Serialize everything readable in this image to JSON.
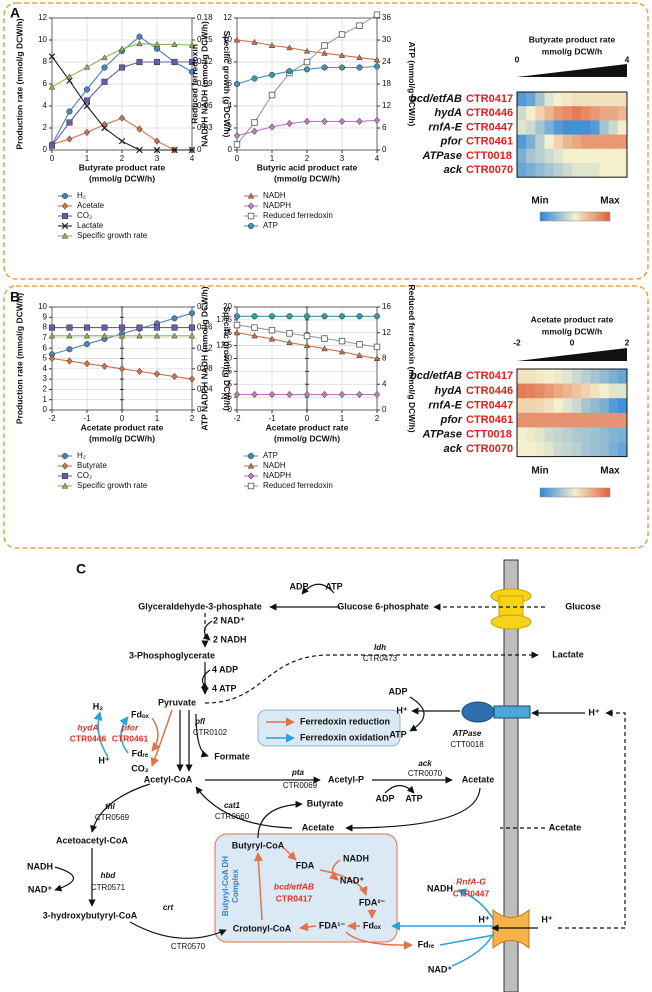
{
  "panel_labels": [
    "A",
    "B",
    "C"
  ],
  "chart_data": [
    {
      "type": "line",
      "x": [
        0,
        0.5,
        1,
        1.5,
        2,
        2.5,
        3,
        3.5,
        4
      ],
      "xlim": [
        0,
        4
      ],
      "xticks": [
        0,
        1,
        2,
        3,
        4
      ],
      "ylim": [
        0,
        12
      ],
      "yticks": [
        0,
        2,
        4,
        6,
        8,
        10,
        12
      ],
      "y2lim": [
        0,
        0.18
      ],
      "y2ticks": [
        0,
        0.03,
        0.06,
        0.09,
        0.12,
        0.15,
        0.18
      ],
      "x_label": [
        "Butyrate product rate",
        "(mmol/g DCW/h)"
      ],
      "y_label": [
        "Production rate (mmol/g DCW/h)"
      ],
      "y2_label": [
        "Specific growth (g DCW/h)"
      ],
      "grid": true,
      "series": [
        {
          "name": "H₂",
          "color": "#4f81bd",
          "marker": "circle",
          "values": [
            0.5,
            3.5,
            5.5,
            7.5,
            9,
            10.3,
            9.2,
            8,
            7.1
          ]
        },
        {
          "name": "Acetate",
          "color": "#c8734a",
          "marker": "diamond",
          "values": [
            0.5,
            1,
            1.6,
            2.3,
            2.9,
            1.9,
            0.8,
            0,
            0
          ]
        },
        {
          "name": "CO₂",
          "color": "#6a5aa8",
          "marker": "square",
          "values": [
            0.4,
            2.5,
            4.5,
            6.2,
            7.5,
            8,
            8,
            8,
            8
          ]
        },
        {
          "name": "Lactate",
          "color": "#222222",
          "marker": "x",
          "values": [
            8.5,
            6.3,
            4,
            2,
            0.8,
            0,
            0,
            0,
            0
          ]
        },
        {
          "name": "Specific growth rate",
          "color": "#8fb35a",
          "marker": "triangle",
          "axis": "y2",
          "values": [
            0.086,
            0.1,
            0.113,
            0.126,
            0.138,
            0.145,
            0.144,
            0.144,
            0.143
          ]
        }
      ]
    },
    {
      "type": "line",
      "x": [
        0,
        0.5,
        1,
        1.5,
        2,
        2.5,
        3,
        3.5,
        4
      ],
      "xlim": [
        0,
        4
      ],
      "xticks": [
        0,
        1,
        2,
        3,
        4
      ],
      "ylim": [
        0,
        12
      ],
      "yticks": [
        0,
        2,
        4,
        6,
        8,
        10,
        12
      ],
      "y2lim": [
        0,
        36
      ],
      "y2ticks": [
        0,
        6,
        12,
        18,
        24,
        30,
        36
      ],
      "x_label": [
        "Butyric acid product rate",
        "(mmol/g DCW/h)"
      ],
      "y_label": [
        "Reduced ferredoxin",
        "NADPH NADH (mmol/g DCW/h)"
      ],
      "y2_label": [
        "ATP (mmol/g DCW/h)"
      ],
      "grid": true,
      "series": [
        {
          "name": "NADH",
          "color": "#c8734a",
          "marker": "triangle",
          "values": [
            10,
            9.8,
            9.5,
            9.3,
            9,
            8.8,
            8.6,
            8.4,
            8.2
          ]
        },
        {
          "name": "NADPH",
          "color": "#c07ac0",
          "marker": "diamond",
          "values": [
            1.3,
            1.7,
            2.1,
            2.4,
            2.6,
            2.6,
            2.6,
            2.6,
            2.7
          ]
        },
        {
          "name": "Reduced ferredoxin",
          "color": "#9a9a9a",
          "marker": "square-open",
          "values": [
            0.5,
            2.5,
            5,
            7,
            8,
            9.5,
            10.5,
            11.3,
            12.3
          ]
        },
        {
          "name": "ATP",
          "color": "#3f93b0",
          "marker": "circle",
          "axis": "y2",
          "values": [
            18,
            19.5,
            20.5,
            21.5,
            22,
            22.5,
            22.5,
            22.5,
            22.8
          ]
        }
      ]
    },
    {
      "type": "heatmap",
      "title": "Butyrate product rate",
      "subtitle": "mmol/g DCW/h",
      "xlim": [
        0,
        4
      ],
      "xticks": [
        0,
        4
      ],
      "rows": [
        {
          "gene": "bcd/etfAB",
          "locus": "CTR0417"
        },
        {
          "gene": "hydA",
          "locus": "CTR0446"
        },
        {
          "gene": "rnfA-E",
          "locus": "CTR0447"
        },
        {
          "gene": "pfor",
          "locus": "CTR0461"
        },
        {
          "gene": "ATPase",
          "locus": "CTT0018"
        },
        {
          "gene": "ack",
          "locus": "CTR0070"
        }
      ],
      "values": [
        [
          0.1,
          0.15,
          0.3,
          0.45,
          0.5,
          0.52,
          0.55,
          0.55,
          0.55,
          0.55,
          0.55,
          0.55
        ],
        [
          0.4,
          0.5,
          0.6,
          0.7,
          0.8,
          0.85,
          0.9,
          0.85,
          0.8,
          0.75,
          0.75,
          0.7
        ],
        [
          0.45,
          0.4,
          0.3,
          0.2,
          0.1,
          0.05,
          0.05,
          0.05,
          0.1,
          0.3,
          0.4,
          0.5
        ],
        [
          0.1,
          0.2,
          0.35,
          0.5,
          0.6,
          0.7,
          0.75,
          0.8,
          0.8,
          0.8,
          0.8,
          0.8
        ],
        [
          0.2,
          0.3,
          0.35,
          0.4,
          0.45,
          0.5,
          0.5,
          0.5,
          0.5,
          0.5,
          0.5,
          0.5
        ],
        [
          0.15,
          0.2,
          0.25,
          0.3,
          0.35,
          0.4,
          0.45,
          0.45,
          0.45,
          0.5,
          0.5,
          0.5
        ]
      ],
      "colorscale": [
        "#2b86d9",
        "#f4efcc",
        "#e0603a"
      ],
      "colorbar_labels": [
        "Min",
        "Max"
      ]
    },
    {
      "type": "line",
      "x": [
        -2,
        -1.5,
        -1,
        -0.5,
        0,
        0.5,
        1,
        1.5,
        2
      ],
      "xlim": [
        -2,
        2
      ],
      "xticks": [
        -2,
        -1,
        0,
        1,
        2
      ],
      "ylim": [
        0,
        10
      ],
      "yticks": [
        0,
        1,
        2,
        3,
        4,
        5,
        6,
        7,
        8,
        9,
        10
      ],
      "y2lim": [
        0,
        0.2
      ],
      "y2ticks": [
        0,
        0.04,
        0.08,
        0.12,
        0.16,
        0.2
      ],
      "x_label": [
        "Acetate product rate",
        "(mmol/g DCW/h)"
      ],
      "y_label": [
        "Production rate (mmol/g DCW/h)"
      ],
      "y2_label": [
        "Specific growth(g DCW/h)"
      ],
      "grid": true,
      "series": [
        {
          "name": "H₂",
          "color": "#4f81bd",
          "marker": "circle",
          "values": [
            5.4,
            5.9,
            6.4,
            6.9,
            7.4,
            7.9,
            8.4,
            8.9,
            9.4
          ]
        },
        {
          "name": "Butyrate",
          "color": "#c8734a",
          "marker": "diamond",
          "values": [
            5,
            4.75,
            4.5,
            4.25,
            4,
            3.75,
            3.5,
            3.25,
            3
          ]
        },
        {
          "name": "CO₂",
          "color": "#6a5aa8",
          "marker": "square",
          "values": [
            8,
            8,
            8,
            8,
            8,
            8,
            8,
            8,
            8
          ]
        },
        {
          "name": "Specific growth rate",
          "color": "#8fb35a",
          "marker": "triangle",
          "axis": "y2",
          "values": [
            0.144,
            0.144,
            0.144,
            0.144,
            0.144,
            0.144,
            0.144,
            0.144,
            0.144
          ]
        }
      ]
    },
    {
      "type": "line",
      "x": [
        -2,
        -1.5,
        -1,
        -0.5,
        0,
        0.5,
        1,
        1.5,
        2
      ],
      "xlim": [
        -2,
        2
      ],
      "xticks": [
        -2,
        -1,
        0,
        1,
        2
      ],
      "ylim": [
        0,
        20
      ],
      "yticks": [
        0,
        2.5,
        5,
        7.5,
        10,
        12.5,
        15,
        17.5,
        20
      ],
      "y2lim": [
        0,
        16
      ],
      "y2ticks": [
        0,
        4,
        8,
        12,
        16
      ],
      "x_label": [
        "Acetate product rate",
        "(mmol/g DCW/h)"
      ],
      "y_label": [
        "ATP NADPH NADH (mmol/g DCW/h)"
      ],
      "y2_label": [
        "Reduced ferredoxin (mmol/g DCW/h)"
      ],
      "grid": true,
      "series": [
        {
          "name": "ATP",
          "color": "#3f93b0",
          "marker": "circle",
          "values": [
            18.2,
            18.2,
            18.2,
            18.2,
            18.2,
            18.2,
            18.2,
            18.2,
            18.2
          ]
        },
        {
          "name": "NADH",
          "color": "#c8734a",
          "marker": "triangle",
          "values": [
            15,
            14.4,
            13.8,
            13.1,
            12.5,
            11.9,
            11.3,
            10.6,
            10
          ]
        },
        {
          "name": "NADPH",
          "color": "#c07ac0",
          "marker": "diamond",
          "values": [
            3,
            3,
            3,
            3,
            3,
            3,
            3,
            3,
            3
          ]
        },
        {
          "name": "Reduced ferredoxin",
          "color": "#9a9a9a",
          "marker": "square-open",
          "axis": "y2",
          "values": [
            13.2,
            12.8,
            12.4,
            11.9,
            11.5,
            11.1,
            10.7,
            10.2,
            9.8
          ]
        }
      ]
    },
    {
      "type": "heatmap",
      "title": "Acetate product rate",
      "subtitle": "mmol/g DCW/h",
      "xlim": [
        -2,
        2
      ],
      "xticks": [
        -2,
        0,
        2
      ],
      "rows": [
        {
          "gene": "bcd/etfAB",
          "locus": "CTR0417"
        },
        {
          "gene": "hydA",
          "locus": "CTR0446"
        },
        {
          "gene": "rnfA-E",
          "locus": "CTR0447"
        },
        {
          "gene": "pfor",
          "locus": "CTR0461"
        },
        {
          "gene": "ATPase",
          "locus": "CTT0018"
        },
        {
          "gene": "ack",
          "locus": "CTR0070"
        }
      ],
      "values": [
        [
          0.55,
          0.55,
          0.52,
          0.5,
          0.48,
          0.45,
          0.4,
          0.35,
          0.3,
          0.25,
          0.2,
          0.15
        ],
        [
          0.9,
          0.88,
          0.85,
          0.8,
          0.75,
          0.7,
          0.65,
          0.6,
          0.55,
          0.5,
          0.45,
          0.45
        ],
        [
          0.6,
          0.6,
          0.58,
          0.55,
          0.5,
          0.45,
          0.4,
          0.3,
          0.25,
          0.2,
          0.1,
          0.05
        ],
        [
          0.82,
          0.82,
          0.82,
          0.82,
          0.82,
          0.82,
          0.82,
          0.82,
          0.82,
          0.82,
          0.82,
          0.82
        ],
        [
          0.5,
          0.48,
          0.45,
          0.4,
          0.38,
          0.35,
          0.32,
          0.3,
          0.28,
          0.25,
          0.22,
          0.2
        ],
        [
          0.5,
          0.5,
          0.48,
          0.45,
          0.4,
          0.38,
          0.35,
          0.3,
          0.28,
          0.25,
          0.2,
          0.15
        ]
      ],
      "colorscale": [
        "#2b86d9",
        "#f4efcc",
        "#e0603a"
      ],
      "colorbar_labels": [
        "Min",
        "Max"
      ]
    }
  ],
  "diagram": {
    "labels": [
      "ADP",
      "ATP",
      "Glyceraldehyde-3-phosphate",
      "Glucose 6-phosphate",
      "Glucose",
      "2 NAD⁺",
      "2 NADH",
      "3-Phosphoglycerate",
      "ldh",
      "CTR0473",
      "Lactate",
      "4 ADP",
      "4 ATP",
      "Pyruvate",
      "ADP",
      "H⁺",
      "H⁺",
      "ATP",
      "ATPase",
      "CTT0018",
      "H₂",
      "Fdₒₓ",
      "hydA",
      "CTR0446",
      "pfor",
      "CTR0461",
      "Fdᵣₑ",
      "H⁺",
      "CO₂",
      "pfl",
      "CTR0102",
      "Formate",
      "Ferredoxin reduction",
      "Ferredoxin oxidation",
      "Acetyl-CoA",
      "pta",
      "CTR0069",
      "Acetyl-P",
      "ack",
      "CTR0070",
      "ADP",
      "ATP",
      "Acetate",
      "thl",
      "CTR0569",
      "cat1",
      "CTR0660",
      "Butyrate",
      "Acetate",
      "Acetate",
      "Acetoacetyl-CoA",
      "Butyryl-CoA",
      "FDA",
      "NADH",
      "NAD⁺",
      "Butyryl-CoA DH",
      "Complex",
      "bcd/etfAB",
      "CTR0417",
      "FDA²⁻",
      "Fdₒₓ",
      "FDA¹⁻",
      "Crotonyl-CoA",
      "NADH",
      "NAD⁺",
      "hbd",
      "CTR0571",
      "3-hydroxybutyryl-CoA",
      "crt",
      "CTR0570",
      "NADH",
      "RnfA-G",
      "CTR0447",
      "H⁺",
      "H⁺",
      "Fdᵣₑ",
      "NAD⁺"
    ]
  }
}
